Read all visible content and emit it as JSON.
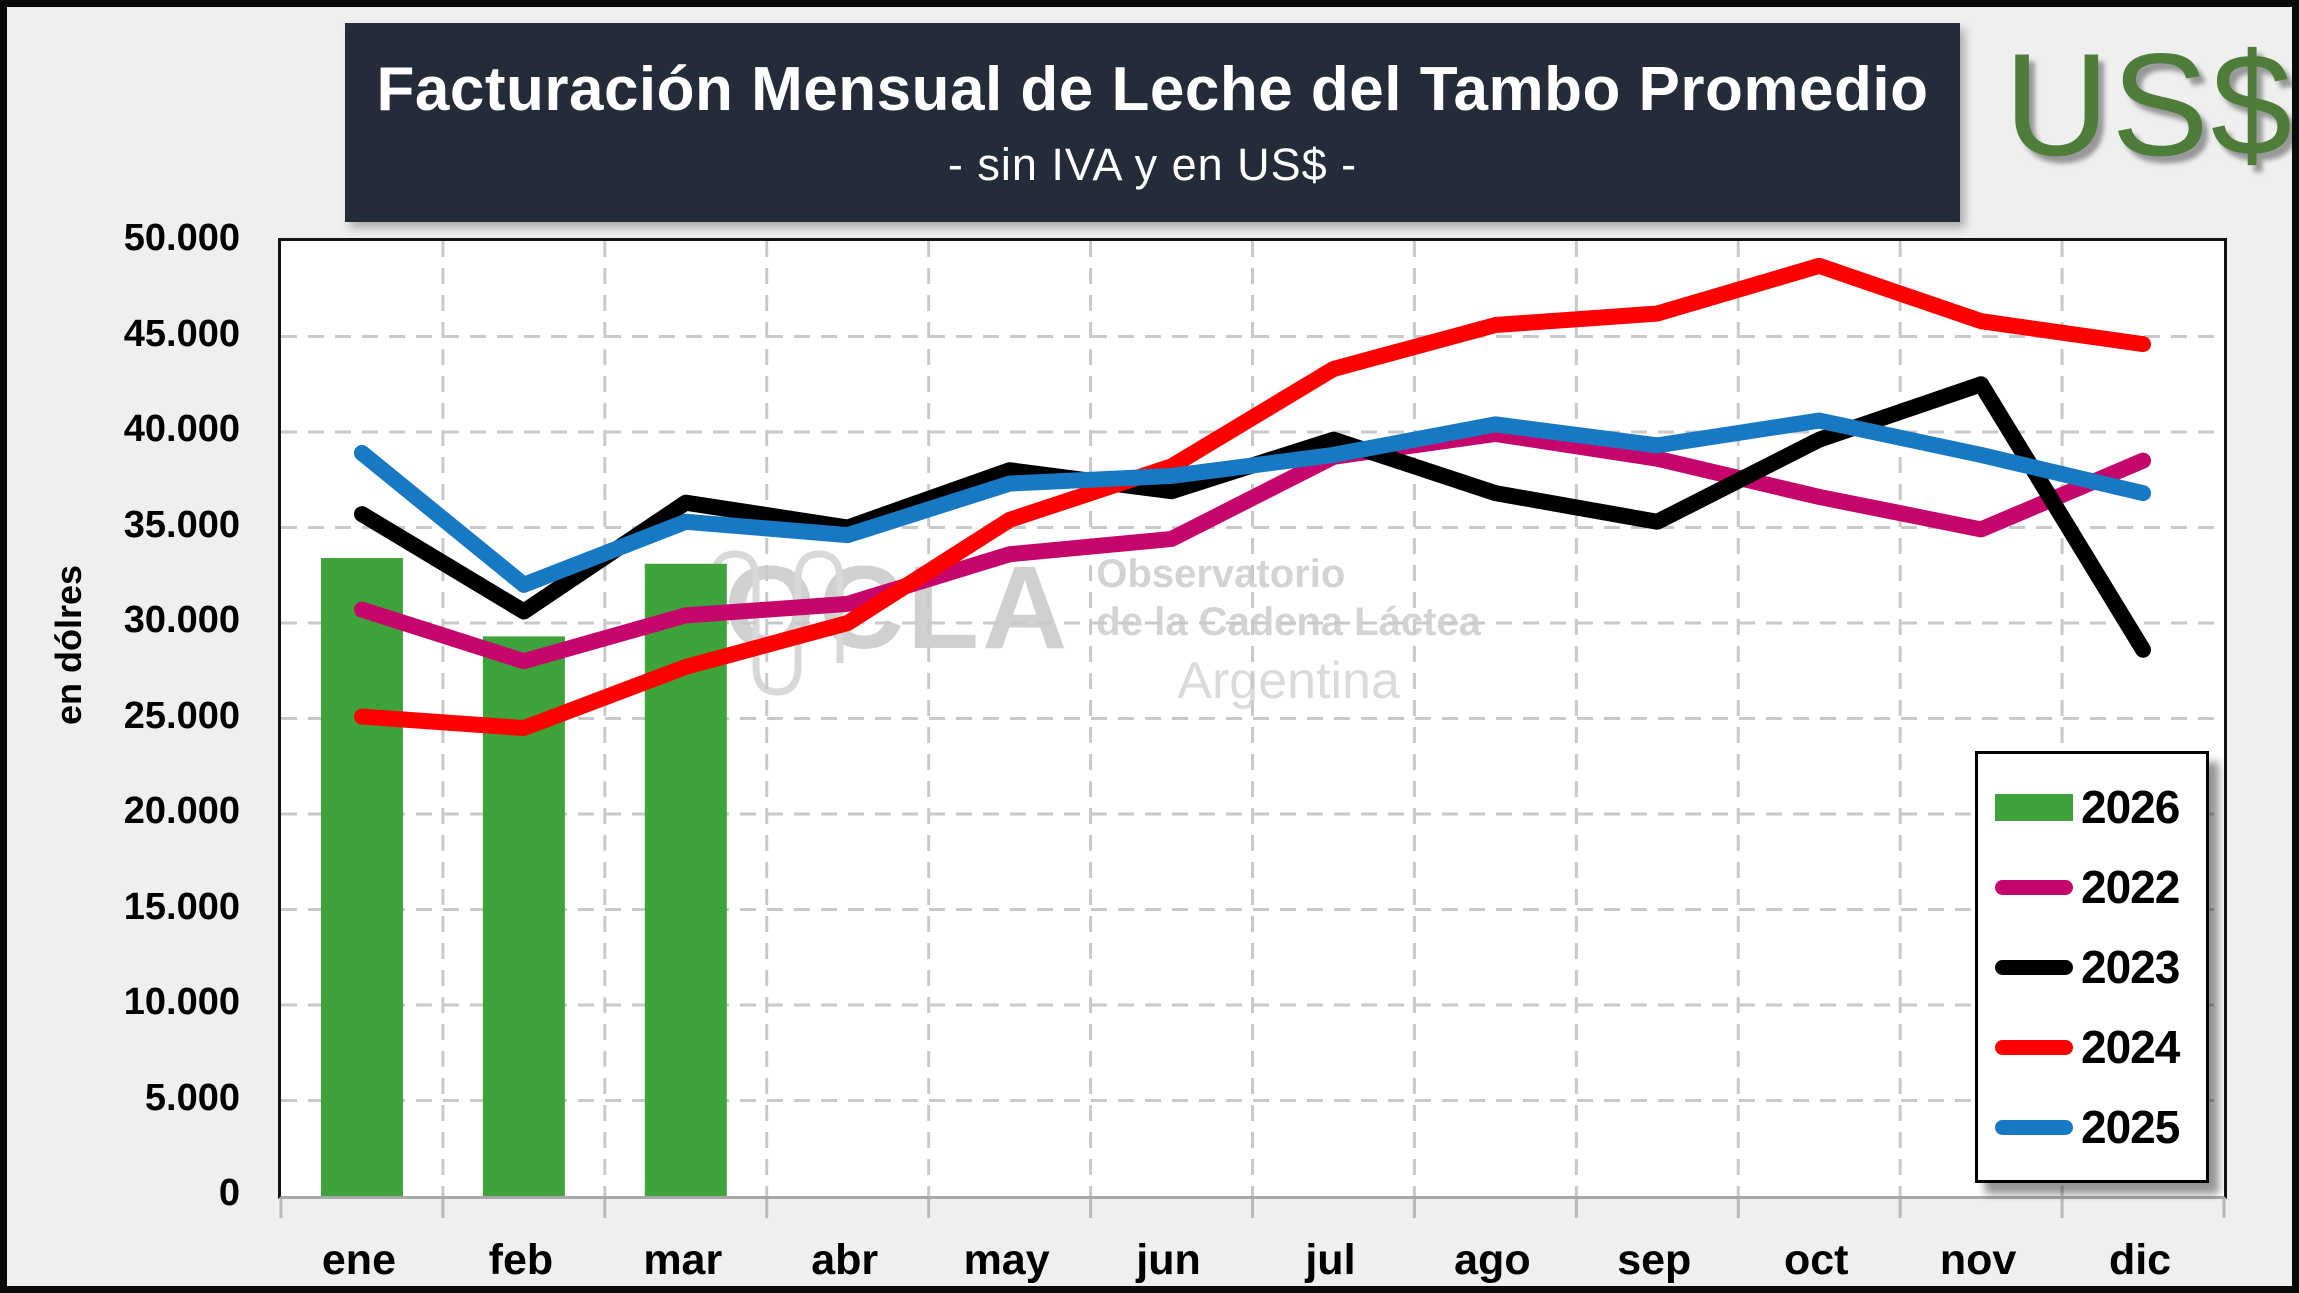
{
  "header": {
    "title": "Facturación Mensual de Leche del Tambo Promedio",
    "subtitle": "- sin IVA y en US$ -",
    "badge": "US$"
  },
  "watermark": {
    "acronym": "OCLA",
    "line1": "Observatorio",
    "line2": "de la Cadena Láctea",
    "line3": "Argentina"
  },
  "colors": {
    "banner_bg": "#242c39",
    "badge_green": "#4e7d39",
    "bar_green": "#3ea33b",
    "series_2022": "#c5056b",
    "series_2023": "#000000",
    "series_2024": "#ff0000",
    "series_2025": "#1779c4",
    "gridline": "#c9c9c9"
  },
  "chart_data": {
    "type": "bar+line combo",
    "title": "Facturación Mensual de Leche del Tambo Promedio",
    "subtitle": "- sin IVA y en US$ -",
    "xlabel": "",
    "ylabel": "en dólres",
    "ylim": [
      0,
      50000
    ],
    "grid": true,
    "legend_position": "inside-right",
    "categories": [
      "ene",
      "feb",
      "mar",
      "abr",
      "may",
      "jun",
      "jul",
      "ago",
      "sep",
      "oct",
      "nov",
      "dic"
    ],
    "yticks": [
      {
        "value": 0,
        "label": "0"
      },
      {
        "value": 5000,
        "label": "5.000"
      },
      {
        "value": 10000,
        "label": "10.000"
      },
      {
        "value": 15000,
        "label": "15.000"
      },
      {
        "value": 20000,
        "label": "20.000"
      },
      {
        "value": 25000,
        "label": "25.000"
      },
      {
        "value": 30000,
        "label": "30.000"
      },
      {
        "value": 35000,
        "label": "35.000"
      },
      {
        "value": 40000,
        "label": "40.000"
      },
      {
        "value": 45000,
        "label": "45.000"
      },
      {
        "value": 50000,
        "label": "50.000"
      }
    ],
    "bar_series": [
      {
        "name": "2026",
        "color_key": "bar_green",
        "values": [
          33400,
          29300,
          33100,
          null,
          null,
          null,
          null,
          null,
          null,
          null,
          null,
          null
        ]
      }
    ],
    "line_series": [
      {
        "name": "2022",
        "color_key": "series_2022",
        "values": [
          30700,
          28000,
          30400,
          31000,
          33600,
          34400,
          38700,
          39900,
          38600,
          36600,
          34900,
          38500
        ]
      },
      {
        "name": "2023",
        "color_key": "series_2023",
        "values": [
          35700,
          30600,
          36300,
          35000,
          38000,
          36900,
          39600,
          36800,
          35300,
          39600,
          42500,
          28600
        ]
      },
      {
        "name": "2024",
        "color_key": "series_2024",
        "values": [
          25100,
          24500,
          27700,
          30000,
          35400,
          38200,
          43300,
          45600,
          46200,
          48700,
          45800,
          44600
        ]
      },
      {
        "name": "2025",
        "color_key": "series_2025",
        "values": [
          38900,
          32000,
          35300,
          34600,
          37300,
          37700,
          38800,
          40400,
          39300,
          40600,
          38800,
          36800
        ]
      }
    ],
    "legend_order": [
      "2026",
      "2022",
      "2023",
      "2024",
      "2025"
    ]
  }
}
